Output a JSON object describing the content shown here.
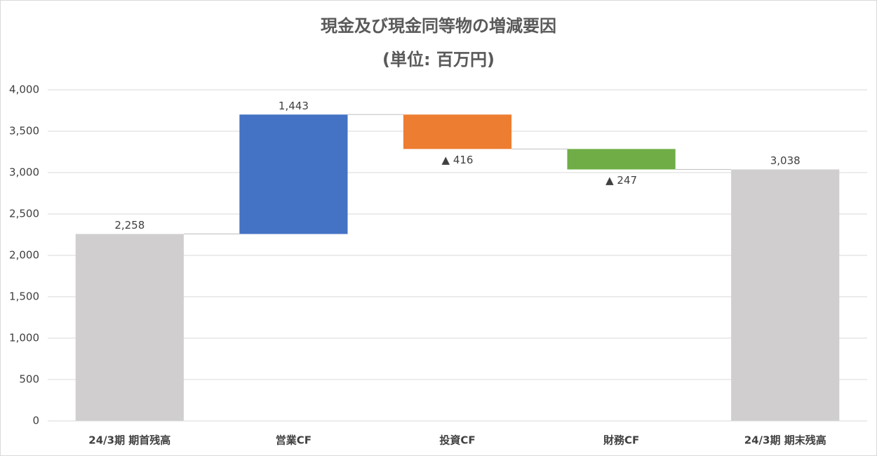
{
  "chart_data": {
    "type": "waterfall",
    "title": "現金及び現金同等物の増減要因",
    "subtitle": "(単位: 百万円)",
    "categories": [
      "24/3期 期首残高",
      "営業CF",
      "投資CF",
      "財務CF",
      "24/3期 期末残高"
    ],
    "values": [
      2258,
      1443,
      -416,
      -247,
      3038
    ],
    "value_labels": [
      "2,258",
      "1,443",
      "▲ 416",
      "▲ 247",
      "3,038"
    ],
    "is_total": [
      true,
      false,
      false,
      false,
      true
    ],
    "colors": [
      "#d0cece",
      "#4472c4",
      "#ed7d31",
      "#70ad47",
      "#d0cece"
    ],
    "ylim": [
      0,
      4000
    ],
    "yticks": [
      0,
      500,
      {
        "value": 1000,
        "label": "1,000"
      },
      {
        "value": 1500,
        "label": "1,500"
      },
      {
        "value": 2000,
        "label": "2,000"
      },
      {
        "value": 2500,
        "label": "2,500"
      },
      {
        "value": 3000,
        "label": "3,000"
      },
      {
        "value": 3500,
        "label": "3,500"
      },
      {
        "value": 4000,
        "label": "4,000"
      }
    ],
    "grid": true
  }
}
